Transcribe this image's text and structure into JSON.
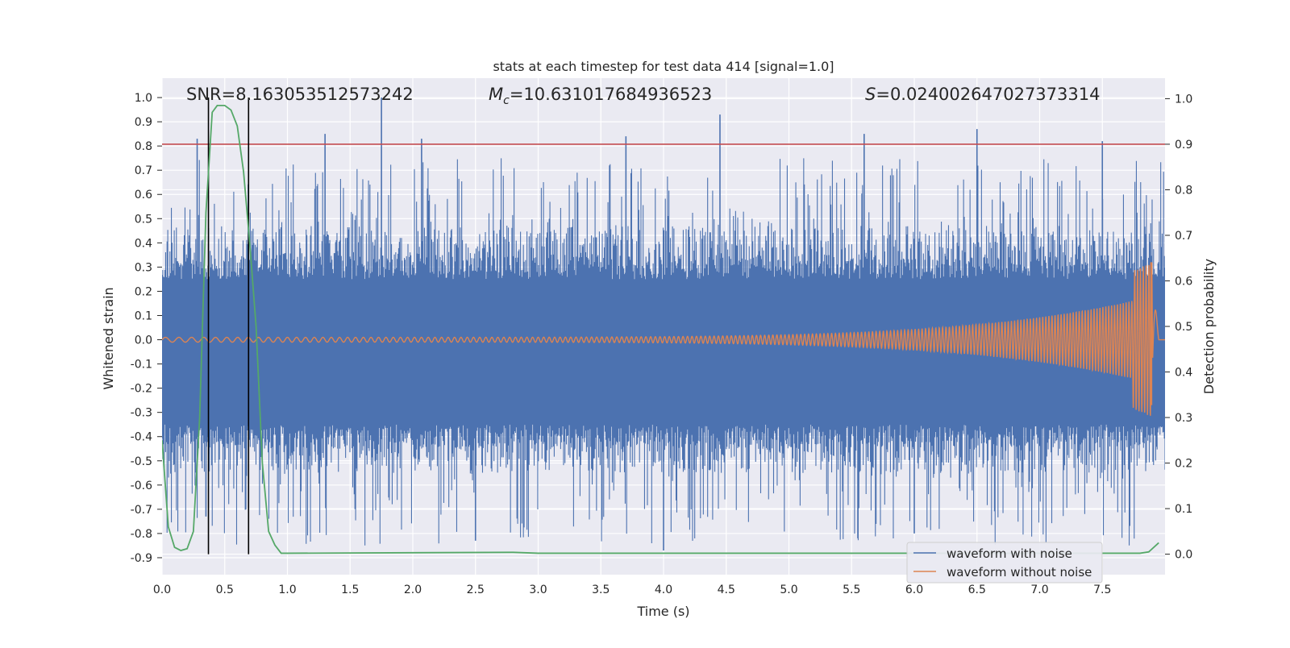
{
  "chart_data": {
    "type": "line",
    "title": "stats at each timestep for test data 414 [signal=1.0]",
    "xlabel": "Time (s)",
    "ylabel": "Whitened strain",
    "y2label": "Detection probability",
    "xlim": [
      0.0,
      8.0
    ],
    "ylim": [
      -0.97,
      1.08
    ],
    "y2lim": [
      -0.045,
      1.045
    ],
    "x_ticks": [
      "0.0",
      "0.5",
      "1.0",
      "1.5",
      "2.0",
      "2.5",
      "3.0",
      "3.5",
      "4.0",
      "4.5",
      "5.0",
      "5.5",
      "6.0",
      "6.5",
      "7.0",
      "7.5"
    ],
    "y_ticks": [
      "1.0",
      "0.9",
      "0.8",
      "0.7",
      "0.6",
      "0.5",
      "0.4",
      "0.3",
      "0.2",
      "0.1",
      "0.0",
      "-0.1",
      "-0.2",
      "-0.3",
      "-0.4",
      "-0.5",
      "-0.6",
      "-0.7",
      "-0.8",
      "-0.9"
    ],
    "y2_ticks": [
      "1.0",
      "0.9",
      "0.8",
      "0.7",
      "0.6",
      "0.5",
      "0.4",
      "0.3",
      "0.2",
      "0.1",
      "0.0"
    ],
    "grid": true,
    "legend_position": "bottom-right",
    "annotations": {
      "snr": "SNR=8.163053512573242",
      "mc_symbol": "M",
      "mc_sub": "c",
      "mc_value": "=10.631017684936523",
      "s_symbol": "S",
      "s_value": "=0.024002647027373314"
    },
    "threshold_line": {
      "y2": 0.9,
      "color": "#c44e52"
    },
    "vertical_markers": {
      "x": [
        0.37,
        0.69
      ],
      "color": "#000000"
    },
    "series": [
      {
        "name": "waveform with noise",
        "color": "#4c72b0",
        "noise": {
          "core_upper": 0.25,
          "core_lower": -0.35,
          "max": 1.0,
          "min": -0.87,
          "n_samples": 1400
        },
        "spikes": [
          {
            "x": 0.28,
            "y": 0.83
          },
          {
            "x": 1.3,
            "y": 0.85
          },
          {
            "x": 1.75,
            "y": 1.0
          },
          {
            "x": 2.07,
            "y": 0.83
          },
          {
            "x": 3.7,
            "y": 0.84
          },
          {
            "x": 4.45,
            "y": 0.93
          },
          {
            "x": 5.6,
            "y": 0.85
          },
          {
            "x": 6.5,
            "y": 0.87
          },
          {
            "x": 7.5,
            "y": 0.82
          },
          {
            "x": 2.5,
            "y": -0.83
          },
          {
            "x": 4.0,
            "y": -0.87
          },
          {
            "x": 5.55,
            "y": -0.82
          },
          {
            "x": 6.0,
            "y": -0.8
          },
          {
            "x": 0.35,
            "y": -0.73
          }
        ]
      },
      {
        "name": "waveform without noise",
        "color": "#dd8452",
        "chirp": {
          "t_merge": 7.9,
          "amp_start": 0.01,
          "amp_peak": 0.32,
          "amp_min": -0.27,
          "freq_start": 9,
          "freq_end": 45
        }
      },
      {
        "name": "detection probability",
        "color": "#55a868",
        "axis": "right",
        "x": [
          0.0,
          0.05,
          0.1,
          0.15,
          0.2,
          0.25,
          0.3,
          0.35,
          0.4,
          0.44,
          0.5,
          0.55,
          0.6,
          0.65,
          0.7,
          0.75,
          0.8,
          0.85,
          0.9,
          0.95,
          1.0,
          2.8,
          3.0,
          7.8,
          7.87,
          7.95
        ],
        "values": [
          0.25,
          0.06,
          0.015,
          0.008,
          0.012,
          0.05,
          0.3,
          0.75,
          0.97,
          0.985,
          0.985,
          0.975,
          0.94,
          0.84,
          0.68,
          0.5,
          0.2,
          0.05,
          0.02,
          0.002,
          0.002,
          0.004,
          0.002,
          0.002,
          0.005,
          0.025
        ]
      }
    ]
  }
}
